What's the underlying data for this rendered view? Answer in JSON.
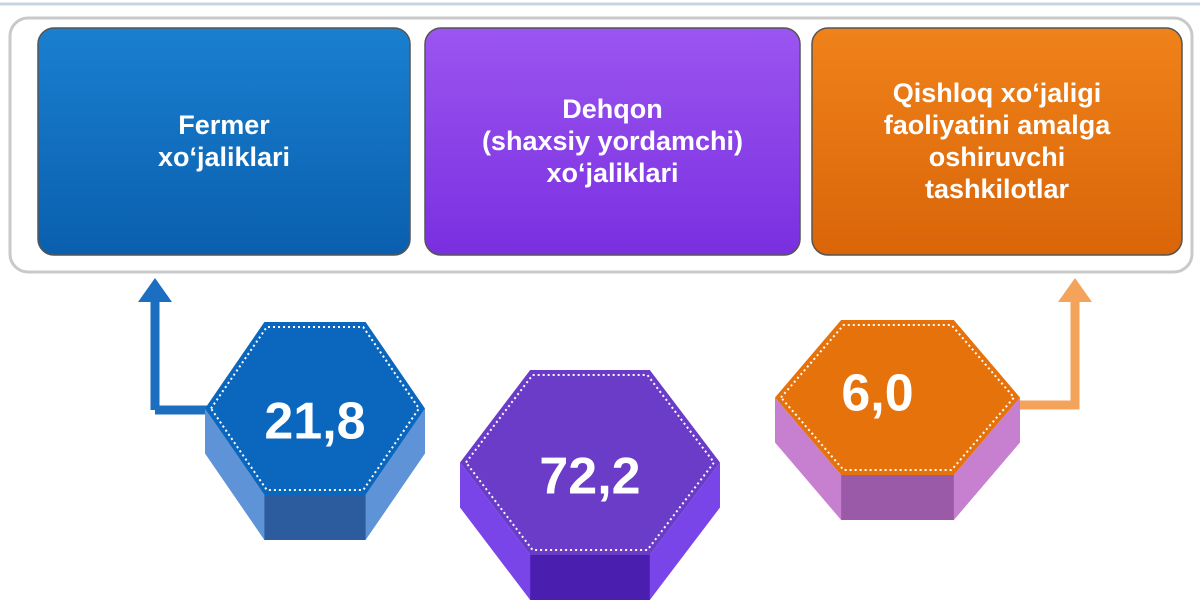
{
  "boxes": [
    {
      "lines": [
        "Fermer",
        "xo‘jaliklari"
      ],
      "value": "21,8"
    },
    {
      "lines": [
        "Dehqon",
        "(shaxsiy yordamchi)",
        "xo‘jaliklari"
      ],
      "value": "72,2"
    },
    {
      "lines": [
        "Qishloq xo‘jaligi",
        "faoliyatini amalga",
        "oshiruvchi",
        "tashkilotlar"
      ],
      "value": "6,0"
    }
  ]
}
